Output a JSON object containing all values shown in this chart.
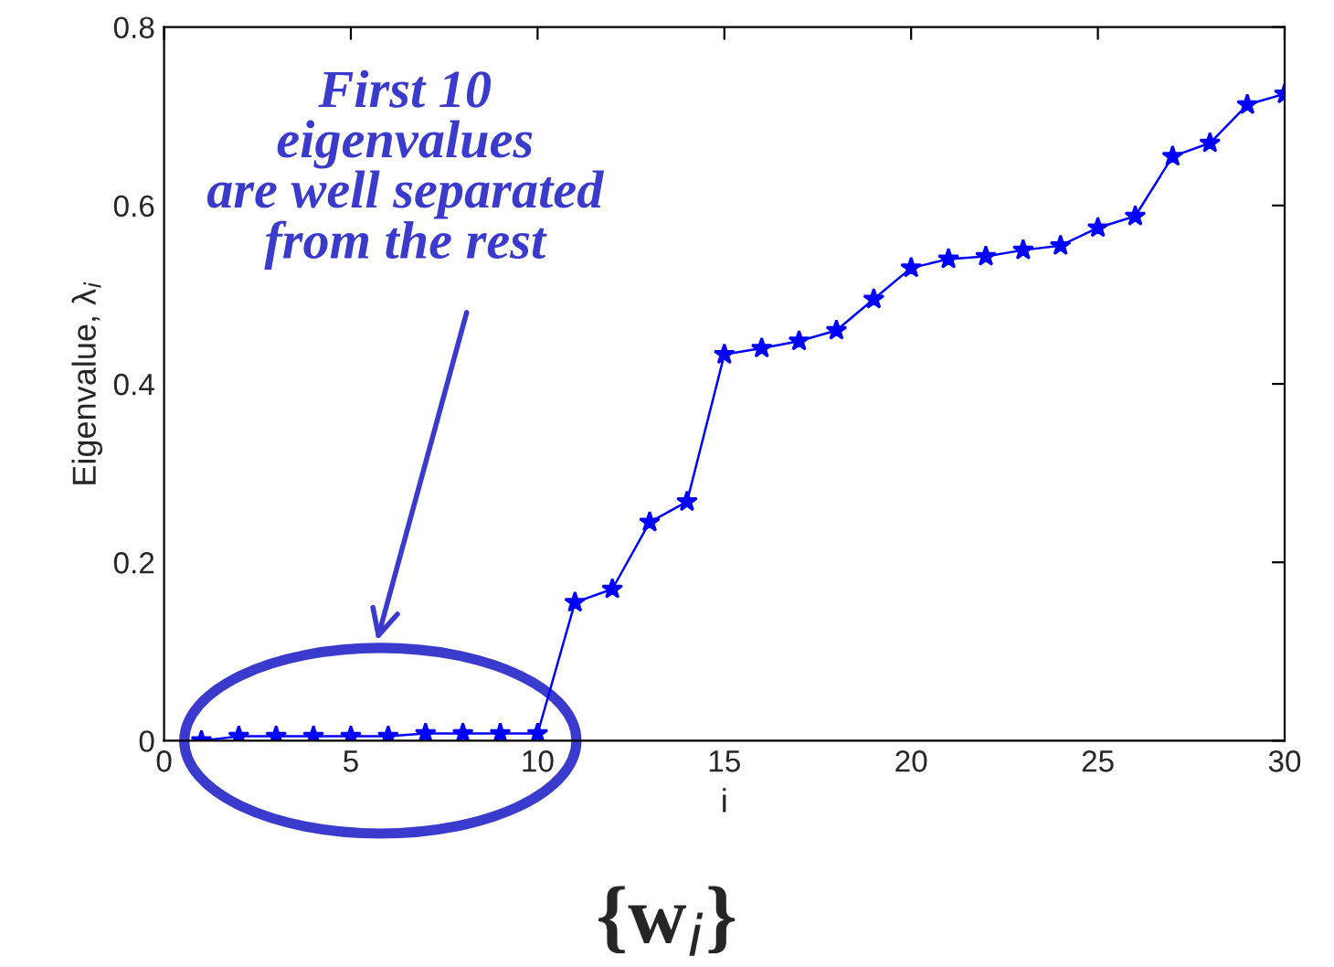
{
  "chart_data": {
    "type": "line",
    "xlabel": "i",
    "ylabel": "Eigenvalue, λ$_{i}$",
    "x": [
      1,
      2,
      3,
      4,
      5,
      6,
      7,
      8,
      9,
      10,
      11,
      12,
      13,
      14,
      15,
      16,
      17,
      18,
      19,
      20,
      21,
      22,
      23,
      24,
      25,
      26,
      27,
      28,
      29,
      30
    ],
    "series": [
      {
        "color": "#0000ff",
        "values": [
          0.0,
          0.005,
          0.005,
          0.005,
          0.005,
          0.005,
          0.008,
          0.008,
          0.008,
          0.008,
          0.155,
          0.17,
          0.245,
          0.268,
          0.433,
          0.44,
          0.448,
          0.46,
          0.495,
          0.53,
          0.54,
          0.543,
          0.55,
          0.555,
          0.575,
          0.588,
          0.655,
          0.67,
          0.713,
          0.725
        ]
      }
    ],
    "xlim": [
      0,
      30
    ],
    "ylim": [
      0,
      0.8
    ],
    "xticks": [
      0,
      5,
      10,
      15,
      20,
      25,
      30
    ],
    "yticks": [
      0,
      0.2,
      0.4,
      0.6,
      0.8
    ],
    "marker": "star",
    "line_style": "solid",
    "grid": false,
    "legend": false,
    "annotations": [
      "First 10\neigenvalues\nare well separated\nfrom the rest",
      "{w$_{i}$}"
    ]
  }
}
